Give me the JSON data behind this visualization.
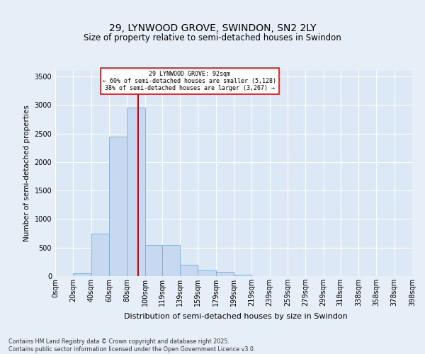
{
  "title": "29, LYNWOOD GROVE, SWINDON, SN2 2LY",
  "subtitle": "Size of property relative to semi-detached houses in Swindon",
  "xlabel": "Distribution of semi-detached houses by size in Swindon",
  "ylabel": "Number of semi-detached properties",
  "bin_labels": [
    "0sqm",
    "20sqm",
    "40sqm",
    "60sqm",
    "80sqm",
    "100sqm",
    "119sqm",
    "139sqm",
    "159sqm",
    "179sqm",
    "199sqm",
    "219sqm",
    "239sqm",
    "259sqm",
    "279sqm",
    "299sqm",
    "318sqm",
    "338sqm",
    "358sqm",
    "378sqm",
    "398sqm"
  ],
  "bin_edges": [
    0,
    20,
    40,
    60,
    80,
    100,
    119,
    139,
    159,
    179,
    199,
    219,
    239,
    259,
    279,
    299,
    318,
    338,
    358,
    378,
    398
  ],
  "bar_heights": [
    0,
    50,
    750,
    2450,
    2950,
    550,
    550,
    200,
    100,
    75,
    30,
    5,
    0,
    0,
    0,
    0,
    0,
    0,
    0,
    0
  ],
  "bar_color": "#c6d9f0",
  "bar_edge_color": "#7aabcf",
  "red_line_x": 92,
  "ylim": [
    0,
    3600
  ],
  "yticks": [
    0,
    500,
    1000,
    1500,
    2000,
    2500,
    3000,
    3500
  ],
  "annotation_title": "29 LYNWOOD GROVE: 92sqm",
  "annotation_line1": "← 60% of semi-detached houses are smaller (5,128)",
  "annotation_line2": "38% of semi-detached houses are larger (3,267) →",
  "footnote1": "Contains HM Land Registry data © Crown copyright and database right 2025.",
  "footnote2": "Contains public sector information licensed under the Open Government Licence v3.0.",
  "bg_color": "#e6eef8",
  "plot_bg_color": "#dce8f5",
  "grid_color": "#ffffff",
  "title_fontsize": 10,
  "subtitle_fontsize": 8.5,
  "ylabel_fontsize": 7.5,
  "xlabel_fontsize": 8,
  "tick_fontsize": 7,
  "footnote_fontsize": 5.8
}
